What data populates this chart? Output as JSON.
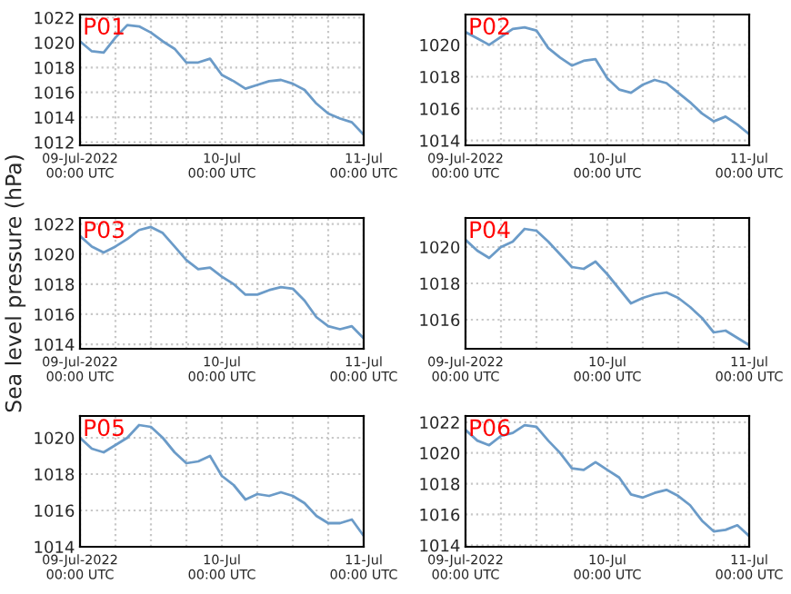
{
  "chart_data": [
    {
      "type": "line",
      "title": "P01",
      "x": [
        "2022-07-09T00:00",
        "2022-07-09T02:00",
        "2022-07-09T04:00",
        "2022-07-09T06:00",
        "2022-07-09T08:00",
        "2022-07-09T10:00",
        "2022-07-09T12:00",
        "2022-07-09T14:00",
        "2022-07-09T16:00",
        "2022-07-09T18:00",
        "2022-07-09T20:00",
        "2022-07-09T22:00",
        "2022-07-10T00:00",
        "2022-07-10T02:00",
        "2022-07-10T04:00",
        "2022-07-10T06:00",
        "2022-07-10T08:00",
        "2022-07-10T10:00",
        "2022-07-10T12:00",
        "2022-07-10T14:00",
        "2022-07-10T16:00",
        "2022-07-10T18:00",
        "2022-07-10T20:00",
        "2022-07-10T22:00",
        "2022-07-11T00:00"
      ],
      "series": [
        {
          "color": "#6b9bc8",
          "values": [
            1020.1,
            1019.3,
            1019.2,
            1020.4,
            1021.4,
            1021.3,
            1020.8,
            1020.1,
            1019.5,
            1018.4,
            1018.4,
            1018.7,
            1017.4,
            1016.9,
            1016.3,
            1016.6,
            1016.9,
            1017.0,
            1016.7,
            1016.2,
            1015.1,
            1014.3,
            1013.9,
            1013.6,
            1012.6
          ]
        }
      ],
      "xlim": [
        "2022-07-09T00:00",
        "2022-07-11T00:00"
      ],
      "xticks": [
        {
          "value": "2022-07-09T00:00",
          "label": "09-Jul-2022\n00:00 UTC"
        },
        {
          "value": "2022-07-09T06:00",
          "label": null
        },
        {
          "value": "2022-07-09T12:00",
          "label": null
        },
        {
          "value": "2022-07-09T18:00",
          "label": null
        },
        {
          "value": "2022-07-10T00:00",
          "label": "10-Jul\n00:00 UTC"
        },
        {
          "value": "2022-07-10T06:00",
          "label": null
        },
        {
          "value": "2022-07-10T12:00",
          "label": null
        },
        {
          "value": "2022-07-10T18:00",
          "label": null
        },
        {
          "value": "2022-07-11T00:00",
          "label": "11-Jul\n00:00 UTC"
        }
      ],
      "ylim": [
        1011.75,
        1022.25
      ],
      "yticks": [
        1012,
        1014,
        1016,
        1018,
        1020,
        1022
      ],
      "grid": true
    },
    {
      "type": "line",
      "title": "P02",
      "x": [
        "2022-07-09T00:00",
        "2022-07-09T02:00",
        "2022-07-09T04:00",
        "2022-07-09T06:00",
        "2022-07-09T08:00",
        "2022-07-09T10:00",
        "2022-07-09T12:00",
        "2022-07-09T14:00",
        "2022-07-09T16:00",
        "2022-07-09T18:00",
        "2022-07-09T20:00",
        "2022-07-09T22:00",
        "2022-07-10T00:00",
        "2022-07-10T02:00",
        "2022-07-10T04:00",
        "2022-07-10T06:00",
        "2022-07-10T08:00",
        "2022-07-10T10:00",
        "2022-07-10T12:00",
        "2022-07-10T14:00",
        "2022-07-10T16:00",
        "2022-07-10T18:00",
        "2022-07-10T20:00",
        "2022-07-10T22:00",
        "2022-07-11T00:00"
      ],
      "series": [
        {
          "color": "#6b9bc8",
          "values": [
            1020.8,
            1020.4,
            1020.0,
            1020.5,
            1021.0,
            1021.1,
            1020.9,
            1019.8,
            1019.2,
            1018.7,
            1019.0,
            1019.1,
            1017.9,
            1017.2,
            1017.0,
            1017.5,
            1017.8,
            1017.6,
            1017.0,
            1016.4,
            1015.7,
            1015.2,
            1015.5,
            1015.0,
            1014.4
          ]
        }
      ],
      "xlim": [
        "2022-07-09T00:00",
        "2022-07-11T00:00"
      ],
      "xticks": [
        {
          "value": "2022-07-09T00:00",
          "label": "09-Jul-2022\n00:00 UTC"
        },
        {
          "value": "2022-07-09T06:00",
          "label": null
        },
        {
          "value": "2022-07-09T12:00",
          "label": null
        },
        {
          "value": "2022-07-09T18:00",
          "label": null
        },
        {
          "value": "2022-07-10T00:00",
          "label": "10-Jul\n00:00 UTC"
        },
        {
          "value": "2022-07-10T06:00",
          "label": null
        },
        {
          "value": "2022-07-10T12:00",
          "label": null
        },
        {
          "value": "2022-07-10T18:00",
          "label": null
        },
        {
          "value": "2022-07-11T00:00",
          "label": "11-Jul\n00:00 UTC"
        }
      ],
      "ylim": [
        1013.7,
        1021.9
      ],
      "yticks": [
        1014,
        1016,
        1018,
        1020
      ],
      "grid": true
    },
    {
      "type": "line",
      "title": "P03",
      "ylabel": "Sea level pressure (hPa)",
      "x": [
        "2022-07-09T00:00",
        "2022-07-09T02:00",
        "2022-07-09T04:00",
        "2022-07-09T06:00",
        "2022-07-09T08:00",
        "2022-07-09T10:00",
        "2022-07-09T12:00",
        "2022-07-09T14:00",
        "2022-07-09T16:00",
        "2022-07-09T18:00",
        "2022-07-09T20:00",
        "2022-07-09T22:00",
        "2022-07-10T00:00",
        "2022-07-10T02:00",
        "2022-07-10T04:00",
        "2022-07-10T06:00",
        "2022-07-10T08:00",
        "2022-07-10T10:00",
        "2022-07-10T12:00",
        "2022-07-10T14:00",
        "2022-07-10T16:00",
        "2022-07-10T18:00",
        "2022-07-10T20:00",
        "2022-07-10T22:00",
        "2022-07-11T00:00"
      ],
      "series": [
        {
          "color": "#6b9bc8",
          "values": [
            1021.2,
            1020.5,
            1020.1,
            1020.5,
            1021.0,
            1021.6,
            1021.8,
            1021.4,
            1020.5,
            1019.6,
            1019.0,
            1019.1,
            1018.5,
            1018.0,
            1017.3,
            1017.3,
            1017.6,
            1017.8,
            1017.7,
            1016.9,
            1015.8,
            1015.2,
            1015.0,
            1015.2,
            1014.4
          ]
        }
      ],
      "xlim": [
        "2022-07-09T00:00",
        "2022-07-11T00:00"
      ],
      "xticks": [
        {
          "value": "2022-07-09T00:00",
          "label": "09-Jul-2022\n00:00 UTC"
        },
        {
          "value": "2022-07-09T06:00",
          "label": null
        },
        {
          "value": "2022-07-09T12:00",
          "label": null
        },
        {
          "value": "2022-07-09T18:00",
          "label": null
        },
        {
          "value": "2022-07-10T00:00",
          "label": "10-Jul\n00:00 UTC"
        },
        {
          "value": "2022-07-10T06:00",
          "label": null
        },
        {
          "value": "2022-07-10T12:00",
          "label": null
        },
        {
          "value": "2022-07-10T18:00",
          "label": null
        },
        {
          "value": "2022-07-11T00:00",
          "label": "11-Jul\n00:00 UTC"
        }
      ],
      "ylim": [
        1013.7,
        1022.4
      ],
      "yticks": [
        1014,
        1016,
        1018,
        1020,
        1022
      ],
      "grid": true
    },
    {
      "type": "line",
      "title": "P04",
      "x": [
        "2022-07-09T00:00",
        "2022-07-09T02:00",
        "2022-07-09T04:00",
        "2022-07-09T06:00",
        "2022-07-09T08:00",
        "2022-07-09T10:00",
        "2022-07-09T12:00",
        "2022-07-09T14:00",
        "2022-07-09T16:00",
        "2022-07-09T18:00",
        "2022-07-09T20:00",
        "2022-07-09T22:00",
        "2022-07-10T00:00",
        "2022-07-10T02:00",
        "2022-07-10T04:00",
        "2022-07-10T06:00",
        "2022-07-10T08:00",
        "2022-07-10T10:00",
        "2022-07-10T12:00",
        "2022-07-10T14:00",
        "2022-07-10T16:00",
        "2022-07-10T18:00",
        "2022-07-10T20:00",
        "2022-07-10T22:00",
        "2022-07-11T00:00"
      ],
      "series": [
        {
          "color": "#6b9bc8",
          "values": [
            1020.4,
            1019.8,
            1019.4,
            1020.0,
            1020.3,
            1021.0,
            1020.9,
            1020.3,
            1019.6,
            1018.9,
            1018.8,
            1019.2,
            1018.5,
            1017.7,
            1016.9,
            1017.2,
            1017.4,
            1017.5,
            1017.2,
            1016.7,
            1016.1,
            1015.3,
            1015.4,
            1015.0,
            1014.6
          ]
        }
      ],
      "xlim": [
        "2022-07-09T00:00",
        "2022-07-11T00:00"
      ],
      "xticks": [
        {
          "value": "2022-07-09T00:00",
          "label": "09-Jul-2022\n00:00 UTC"
        },
        {
          "value": "2022-07-09T06:00",
          "label": null
        },
        {
          "value": "2022-07-09T12:00",
          "label": null
        },
        {
          "value": "2022-07-09T18:00",
          "label": null
        },
        {
          "value": "2022-07-10T00:00",
          "label": "10-Jul\n00:00 UTC"
        },
        {
          "value": "2022-07-10T06:00",
          "label": null
        },
        {
          "value": "2022-07-10T12:00",
          "label": null
        },
        {
          "value": "2022-07-10T18:00",
          "label": null
        },
        {
          "value": "2022-07-11T00:00",
          "label": "11-Jul\n00:00 UTC"
        }
      ],
      "ylim": [
        1014.4,
        1021.6
      ],
      "yticks": [
        1016,
        1018,
        1020
      ],
      "grid": true
    },
    {
      "type": "line",
      "title": "P05",
      "x": [
        "2022-07-09T00:00",
        "2022-07-09T02:00",
        "2022-07-09T04:00",
        "2022-07-09T06:00",
        "2022-07-09T08:00",
        "2022-07-09T10:00",
        "2022-07-09T12:00",
        "2022-07-09T14:00",
        "2022-07-09T16:00",
        "2022-07-09T18:00",
        "2022-07-09T20:00",
        "2022-07-09T22:00",
        "2022-07-10T00:00",
        "2022-07-10T02:00",
        "2022-07-10T04:00",
        "2022-07-10T06:00",
        "2022-07-10T08:00",
        "2022-07-10T10:00",
        "2022-07-10T12:00",
        "2022-07-10T14:00",
        "2022-07-10T16:00",
        "2022-07-10T18:00",
        "2022-07-10T20:00",
        "2022-07-10T22:00",
        "2022-07-11T00:00"
      ],
      "series": [
        {
          "color": "#6b9bc8",
          "values": [
            1020.0,
            1019.4,
            1019.2,
            1019.6,
            1020.0,
            1020.7,
            1020.6,
            1020.0,
            1019.2,
            1018.6,
            1018.7,
            1019.0,
            1017.9,
            1017.4,
            1016.6,
            1016.9,
            1016.8,
            1017.0,
            1016.8,
            1016.4,
            1015.7,
            1015.3,
            1015.3,
            1015.5,
            1014.6
          ]
        }
      ],
      "xlim": [
        "2022-07-09T00:00",
        "2022-07-11T00:00"
      ],
      "xticks": [
        {
          "value": "2022-07-09T00:00",
          "label": "09-Jul-2022\n00:00 UTC"
        },
        {
          "value": "2022-07-09T06:00",
          "label": null
        },
        {
          "value": "2022-07-09T12:00",
          "label": null
        },
        {
          "value": "2022-07-09T18:00",
          "label": null
        },
        {
          "value": "2022-07-10T00:00",
          "label": "10-Jul\n00:00 UTC"
        },
        {
          "value": "2022-07-10T06:00",
          "label": null
        },
        {
          "value": "2022-07-10T12:00",
          "label": null
        },
        {
          "value": "2022-07-10T18:00",
          "label": null
        },
        {
          "value": "2022-07-11T00:00",
          "label": "11-Jul\n00:00 UTC"
        }
      ],
      "ylim": [
        1014,
        1021.2
      ],
      "yticks": [
        1014,
        1016,
        1018,
        1020
      ],
      "grid": true
    },
    {
      "type": "line",
      "title": "P06",
      "x": [
        "2022-07-09T00:00",
        "2022-07-09T02:00",
        "2022-07-09T04:00",
        "2022-07-09T06:00",
        "2022-07-09T08:00",
        "2022-07-09T10:00",
        "2022-07-09T12:00",
        "2022-07-09T14:00",
        "2022-07-09T16:00",
        "2022-07-09T18:00",
        "2022-07-09T20:00",
        "2022-07-09T22:00",
        "2022-07-10T00:00",
        "2022-07-10T02:00",
        "2022-07-10T04:00",
        "2022-07-10T06:00",
        "2022-07-10T08:00",
        "2022-07-10T10:00",
        "2022-07-10T12:00",
        "2022-07-10T14:00",
        "2022-07-10T16:00",
        "2022-07-10T18:00",
        "2022-07-10T20:00",
        "2022-07-10T22:00",
        "2022-07-11T00:00"
      ],
      "series": [
        {
          "color": "#6b9bc8",
          "values": [
            1021.5,
            1020.8,
            1020.5,
            1021.1,
            1021.3,
            1021.8,
            1021.7,
            1020.8,
            1020.0,
            1019.0,
            1018.9,
            1019.4,
            1018.9,
            1018.4,
            1017.3,
            1017.1,
            1017.4,
            1017.6,
            1017.2,
            1016.6,
            1015.6,
            1014.9,
            1015.0,
            1015.3,
            1014.6
          ]
        }
      ],
      "xlim": [
        "2022-07-09T00:00",
        "2022-07-11T00:00"
      ],
      "xticks": [
        {
          "value": "2022-07-09T00:00",
          "label": "09-Jul-2022\n00:00 UTC"
        },
        {
          "value": "2022-07-09T06:00",
          "label": null
        },
        {
          "value": "2022-07-09T12:00",
          "label": null
        },
        {
          "value": "2022-07-09T18:00",
          "label": null
        },
        {
          "value": "2022-07-10T00:00",
          "label": "10-Jul\n00:00 UTC"
        },
        {
          "value": "2022-07-10T06:00",
          "label": null
        },
        {
          "value": "2022-07-10T12:00",
          "label": null
        },
        {
          "value": "2022-07-10T18:00",
          "label": null
        },
        {
          "value": "2022-07-11T00:00",
          "label": "11-Jul\n00:00 UTC"
        }
      ],
      "ylim": [
        1013.9,
        1022.4
      ],
      "yticks": [
        1014,
        1016,
        1018,
        1020,
        1022
      ],
      "grid": true
    }
  ]
}
